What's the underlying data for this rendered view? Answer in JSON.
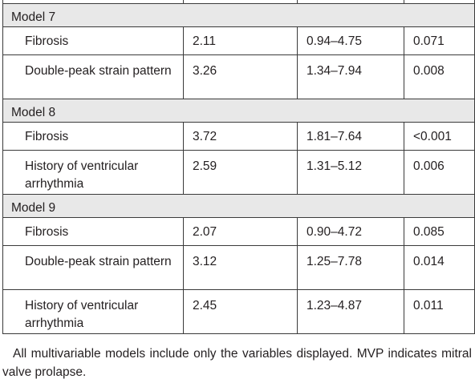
{
  "table": {
    "models": [
      {
        "label": "Model 7",
        "rows": [
          {
            "variable": "Fibrosis",
            "value": "2.11",
            "ci": "0.94–4.75",
            "p": "0.071",
            "lines": 1
          },
          {
            "variable": "Double-peak strain pattern",
            "value": "3.26",
            "ci": "1.34–7.94",
            "p": "0.008",
            "lines": 2
          }
        ]
      },
      {
        "label": "Model 8",
        "rows": [
          {
            "variable": "Fibrosis",
            "value": "3.72",
            "ci": "1.81–7.64",
            "p": "<0.001",
            "lines": 1
          },
          {
            "variable": "History of ventricular arrhythmia",
            "value": "2.59",
            "ci": "1.31–5.12",
            "p": "0.006",
            "lines": 2
          }
        ]
      },
      {
        "label": "Model 9",
        "rows": [
          {
            "variable": "Fibrosis",
            "value": "2.07",
            "ci": "0.90–4.72",
            "p": "0.085",
            "lines": 1
          },
          {
            "variable": "Double-peak strain pattern",
            "value": "3.12",
            "ci": "1.25–7.78",
            "p": "0.014",
            "lines": 2
          },
          {
            "variable": "History of ventricular arrhythmia",
            "value": "2.45",
            "ci": "1.23–4.87",
            "p": "0.011",
            "lines": 2
          }
        ]
      }
    ]
  },
  "footnote": "All multivariable models include only the variables displayed. MVP indicates mitral valve prolapse."
}
